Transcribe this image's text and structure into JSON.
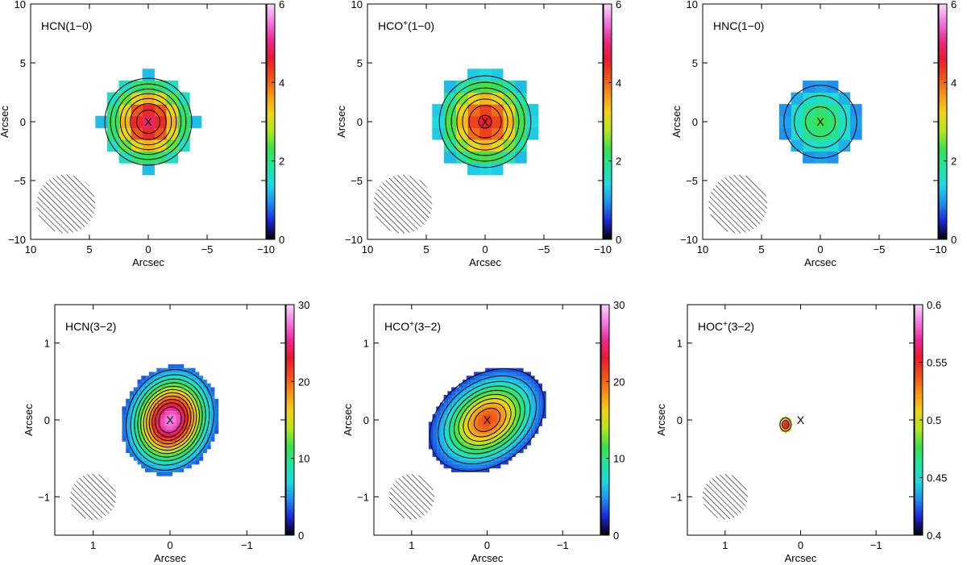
{
  "figure": {
    "description_type": "molecular line intensity maps",
    "colormap": [
      "#000000",
      "#1e24d2",
      "#1f8cf0",
      "#20d8e0",
      "#22e4a0",
      "#3ce04a",
      "#b4e61e",
      "#f0d21c",
      "#f49419",
      "#f0501a",
      "#e81b2e",
      "#ea2a92",
      "#f27ae0",
      "#fad7fa"
    ]
  },
  "chart_data": [
    {
      "type": "heatmap",
      "title": "HCN(1−0)",
      "title_main": "HCN(1−0)",
      "xlabel": "Arcsec",
      "ylabel": "Arcsec",
      "xlim": [
        10,
        -10
      ],
      "ylim": [
        -10,
        10
      ],
      "x_ticks": [
        10,
        5,
        0,
        -5,
        -10
      ],
      "y_ticks": [
        -10,
        -5,
        0,
        5,
        10
      ],
      "x_tick_labels": [
        "10",
        "5",
        "0",
        "−5",
        "−10"
      ],
      "y_tick_labels": [
        "−10",
        "−5",
        "0",
        "5",
        "10"
      ],
      "colorbar_range": [
        0,
        6
      ],
      "colorbar_ticks": [
        "0",
        "2",
        "4",
        "6"
      ],
      "colorbar_tick_values": [
        0,
        2,
        4,
        6
      ],
      "grid_step": 1,
      "pixelated": true,
      "peak": 4.9,
      "peak_position": [
        0,
        0
      ],
      "sigma": [
        2.4,
        2.4
      ],
      "rotation_deg": 0,
      "extent_radius": [
        4.0,
        4.0
      ],
      "contour_levels": [
        1.0,
        1.5,
        2.0,
        2.5,
        3.0,
        3.5,
        4.0,
        4.5
      ],
      "cross_position": [
        0,
        0
      ],
      "beam": {
        "center": [
          7.0,
          -7.0
        ],
        "major": 2.5,
        "minor": 2.5
      }
    },
    {
      "type": "heatmap",
      "title": "HCO+(1−0)",
      "title_main": "HCO",
      "title_sup": "+",
      "title_tail": "(1−0)",
      "xlabel": "Arcsec",
      "ylabel": "Arcsec",
      "xlim": [
        10,
        -10
      ],
      "ylim": [
        -10,
        10
      ],
      "x_ticks": [
        10,
        5,
        0,
        -5,
        -10
      ],
      "y_ticks": [
        -10,
        -5,
        0,
        5,
        10
      ],
      "x_tick_labels": [
        "10",
        "5",
        "0",
        "−5",
        "−10"
      ],
      "y_tick_labels": [
        "−10",
        "−5",
        "0",
        "5",
        "10"
      ],
      "colorbar_range": [
        0,
        6
      ],
      "colorbar_ticks": [
        "0",
        "2",
        "4",
        "6"
      ],
      "colorbar_tick_values": [
        0,
        2,
        4,
        6
      ],
      "grid_step": 1,
      "pixelated": true,
      "peak": 4.6,
      "peak_position": [
        0,
        0
      ],
      "sigma": [
        2.6,
        2.6
      ],
      "rotation_deg": 0,
      "extent_radius": [
        4.3,
        4.3
      ],
      "contour_levels": [
        1.0,
        1.5,
        2.0,
        2.5,
        3.0,
        3.5,
        4.0,
        4.5
      ],
      "cross_position": [
        0,
        0
      ],
      "beam": {
        "center": [
          7.0,
          -7.0
        ],
        "major": 2.5,
        "minor": 2.5
      }
    },
    {
      "type": "heatmap",
      "title": "HNC(1−0)",
      "title_main": "HNC(1−0)",
      "xlabel": "Arcsec",
      "ylabel": "Arcsec",
      "xlim": [
        10,
        -10
      ],
      "ylim": [
        -10,
        10
      ],
      "x_ticks": [
        10,
        5,
        0,
        -5,
        -10
      ],
      "y_ticks": [
        -10,
        -5,
        0,
        5,
        10
      ],
      "x_tick_labels": [
        "10",
        "5",
        "0",
        "−5",
        "−10"
      ],
      "y_tick_labels": [
        "−10",
        "−5",
        "0",
        "5",
        "10"
      ],
      "colorbar_range": [
        0,
        6
      ],
      "colorbar_ticks": [
        "0",
        "2",
        "4",
        "6"
      ],
      "colorbar_tick_values": [
        0,
        2,
        4,
        6
      ],
      "grid_step": 1,
      "pixelated": true,
      "peak": 2.3,
      "peak_position": [
        0,
        0
      ],
      "sigma": [
        2.4,
        2.4
      ],
      "rotation_deg": 0,
      "extent_radius": [
        3.6,
        3.6
      ],
      "contour_levels": [
        1.0,
        1.5,
        2.0
      ],
      "cross_position": [
        0,
        0
      ],
      "beam": {
        "center": [
          7.0,
          -7.0
        ],
        "major": 2.5,
        "minor": 2.5
      }
    },
    {
      "type": "heatmap",
      "title": "HCN(3−2)",
      "title_main": "HCN(3−2)",
      "xlabel": "Arcsec",
      "ylabel": "Arcsec",
      "xlim": [
        1.5,
        -1.5
      ],
      "ylim": [
        -1.5,
        1.5
      ],
      "x_ticks": [
        1,
        0,
        -1
      ],
      "y_ticks": [
        -1,
        0,
        1
      ],
      "x_tick_labels": [
        "1",
        "0",
        "−1"
      ],
      "y_tick_labels": [
        "−1",
        "0",
        "1"
      ],
      "colorbar_range": [
        0,
        30
      ],
      "colorbar_ticks": [
        "0",
        "10",
        "20",
        "30"
      ],
      "colorbar_tick_values": [
        0,
        10,
        20,
        30
      ],
      "grid_step": 0.05,
      "pixelated": true,
      "peak": 28,
      "peak_position": [
        0,
        0
      ],
      "sigma": [
        0.3,
        0.36
      ],
      "rotation_deg": 20,
      "extent_radius": [
        0.62,
        0.72
      ],
      "contour_levels": [
        3,
        5,
        7,
        9,
        11,
        13,
        15,
        17,
        19,
        21,
        23,
        25
      ],
      "cross_position": [
        0,
        0
      ],
      "beam": {
        "center": [
          1.0,
          -1.0
        ],
        "major": 0.3,
        "minor": 0.3
      }
    },
    {
      "type": "heatmap",
      "title": "HCO+(3−2)",
      "title_main": "HCO",
      "title_sup": "+",
      "title_tail": "(3−2)",
      "xlabel": "Arcsec",
      "ylabel": "Arcsec",
      "xlim": [
        1.5,
        -1.5
      ],
      "ylim": [
        -1.5,
        1.5
      ],
      "x_ticks": [
        1,
        0,
        -1
      ],
      "y_ticks": [
        -1,
        0,
        1
      ],
      "x_tick_labels": [
        "1",
        "0",
        "−1"
      ],
      "y_tick_labels": [
        "−1",
        "0",
        "1"
      ],
      "colorbar_range": [
        0,
        30
      ],
      "colorbar_ticks": [
        "0",
        "10",
        "20",
        "30"
      ],
      "colorbar_tick_values": [
        0,
        10,
        20,
        30
      ],
      "grid_step": 0.05,
      "pixelated": true,
      "peak": 21,
      "peak_position": [
        0,
        0
      ],
      "sigma": [
        0.42,
        0.3
      ],
      "rotation_deg": -35,
      "extent_radius": [
        0.85,
        0.6
      ],
      "contour_levels": [
        3,
        5,
        7,
        9,
        11,
        13,
        15,
        17,
        19
      ],
      "cross_position": [
        0,
        0
      ],
      "beam": {
        "center": [
          1.0,
          -1.0
        ],
        "major": 0.3,
        "minor": 0.3
      }
    },
    {
      "type": "heatmap",
      "title": "HOC+(3−2)",
      "title_main": "HOC",
      "title_sup": "+",
      "title_tail": "(3−2)",
      "xlabel": "Arcsec",
      "ylabel": "Arcsec",
      "xlim": [
        1.5,
        -1.5
      ],
      "ylim": [
        -1.5,
        1.5
      ],
      "x_ticks": [
        1,
        0,
        -1
      ],
      "y_ticks": [
        -1,
        0,
        1
      ],
      "x_tick_labels": [
        "1",
        "0",
        "−1"
      ],
      "y_tick_labels": [
        "−1",
        "0",
        "1"
      ],
      "colorbar_range": [
        0.4,
        0.6
      ],
      "colorbar_ticks": [
        "0.4",
        "0.45",
        "0.5",
        "0.55",
        "0.6"
      ],
      "colorbar_tick_values": [
        0.4,
        0.45,
        0.5,
        0.55,
        0.6
      ],
      "grid_step": 0.02,
      "pixelated": true,
      "peak": 0.56,
      "base": 0.47,
      "peak_position": [
        0.2,
        -0.06
      ],
      "sigma": [
        0.05,
        0.06
      ],
      "rotation_deg": 0,
      "extent_radius": [
        0.08,
        0.1
      ],
      "contour_levels": [
        0.5,
        0.53
      ],
      "cross_position": [
        0.0,
        0.0
      ],
      "beam": {
        "center": [
          1.0,
          -1.0
        ],
        "major": 0.3,
        "minor": 0.3
      }
    }
  ]
}
